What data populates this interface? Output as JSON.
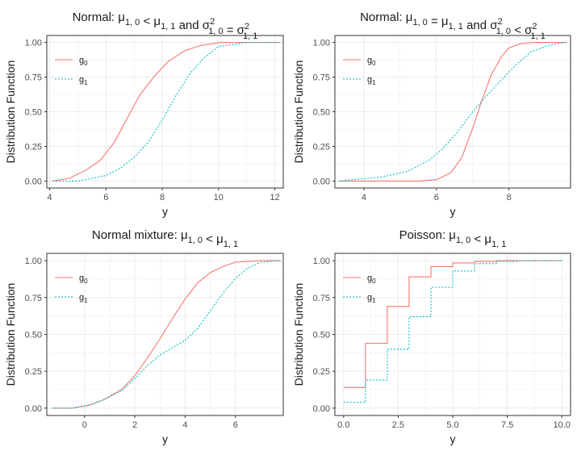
{
  "figure": {
    "ylabel": "Distribution Function",
    "xlabel": "y"
  },
  "colors": {
    "g0": "#F8766D",
    "g1": "#00BFC4",
    "grid": "#EBEBEB",
    "border": "#333333"
  },
  "chart_data": [
    {
      "type": "line",
      "title_main": "Normal: ",
      "title_math": "μ1,0 < μ1,1 and σ²1,0 = σ²1,1",
      "xlabel": "y",
      "ylabel": "Distribution Function",
      "xlim": [
        3.9,
        12.3
      ],
      "ylim": [
        0,
        1
      ],
      "xticks": [
        4,
        6,
        8,
        10,
        12
      ],
      "yticks": [
        0.0,
        0.25,
        0.5,
        0.75,
        1.0
      ],
      "ytick_labels": [
        "0.00",
        "0.25",
        "0.50",
        "0.75",
        "1.00"
      ],
      "legend": [
        {
          "name": "g",
          "sub": "0"
        },
        {
          "name": "g",
          "sub": "1"
        }
      ],
      "series": [
        {
          "name": "g0",
          "step": false,
          "x": [
            4.1,
            4.7,
            5.3,
            5.8,
            6.3,
            6.8,
            7.2,
            7.7,
            8.2,
            8.8,
            9.4,
            10.1,
            10.6,
            12.2
          ],
          "y": [
            0.0,
            0.02,
            0.08,
            0.15,
            0.28,
            0.47,
            0.62,
            0.75,
            0.86,
            0.94,
            0.98,
            1.0,
            1.0,
            1.0
          ]
        },
        {
          "name": "g1",
          "step": false,
          "x": [
            4.1,
            5.0,
            5.5,
            6.0,
            6.5,
            7.0,
            7.5,
            8.0,
            8.5,
            9.0,
            9.5,
            10.0,
            11.0,
            12.2
          ],
          "y": [
            0.0,
            0.0,
            0.02,
            0.04,
            0.09,
            0.17,
            0.28,
            0.44,
            0.62,
            0.78,
            0.89,
            0.97,
            1.0,
            1.0
          ]
        }
      ]
    },
    {
      "type": "line",
      "title_main": "Normal: ",
      "title_math": "μ1,0 = μ1,1 and σ²1,0 < σ²1,1",
      "xlabel": "y",
      "ylabel": "Distribution Function",
      "xlim": [
        3.2,
        9.7
      ],
      "ylim": [
        0,
        1
      ],
      "xticks": [
        4,
        6,
        8
      ],
      "yticks": [
        0.0,
        0.25,
        0.5,
        0.75,
        1.0
      ],
      "ytick_labels": [
        "0.00",
        "0.25",
        "0.50",
        "0.75",
        "1.00"
      ],
      "legend": [
        {
          "name": "g",
          "sub": "0"
        },
        {
          "name": "g",
          "sub": "1"
        }
      ],
      "series": [
        {
          "name": "g0",
          "step": false,
          "x": [
            3.3,
            5.5,
            6.0,
            6.4,
            6.7,
            7.0,
            7.2,
            7.5,
            7.8,
            8.0,
            8.3,
            8.7,
            9.0,
            9.6
          ],
          "y": [
            0.0,
            0.0,
            0.01,
            0.06,
            0.17,
            0.38,
            0.54,
            0.76,
            0.9,
            0.96,
            0.99,
            1.0,
            1.0,
            1.0
          ]
        },
        {
          "name": "g1",
          "step": false,
          "x": [
            3.3,
            4.5,
            5.2,
            5.8,
            6.2,
            6.6,
            7.0,
            7.4,
            7.8,
            8.2,
            8.6,
            9.0,
            9.3,
            9.6
          ],
          "y": [
            0.0,
            0.03,
            0.07,
            0.15,
            0.24,
            0.36,
            0.5,
            0.62,
            0.73,
            0.84,
            0.93,
            0.97,
            0.99,
            1.0
          ]
        }
      ]
    },
    {
      "type": "line",
      "title_main": "Normal mixture: ",
      "title_math": "μ1,0 < μ1,1",
      "xlabel": "y",
      "ylabel": "Distribution Function",
      "xlim": [
        -1.5,
        7.9
      ],
      "ylim": [
        0,
        1
      ],
      "xticks": [
        0,
        2,
        4,
        6
      ],
      "yticks": [
        0.0,
        0.25,
        0.5,
        0.75,
        1.0
      ],
      "ytick_labels": [
        "0.00",
        "0.25",
        "0.50",
        "0.75",
        "1.00"
      ],
      "legend": [
        {
          "name": "g",
          "sub": "0"
        },
        {
          "name": "g",
          "sub": "1"
        }
      ],
      "series": [
        {
          "name": "g0",
          "step": false,
          "x": [
            -1.3,
            -0.5,
            0.2,
            0.8,
            1.5,
            2.0,
            2.5,
            3.0,
            3.5,
            4.0,
            4.5,
            5.0,
            5.5,
            6.0,
            7.0,
            7.8
          ],
          "y": [
            0.0,
            0.0,
            0.02,
            0.06,
            0.13,
            0.22,
            0.34,
            0.47,
            0.61,
            0.74,
            0.85,
            0.92,
            0.96,
            0.99,
            1.0,
            1.0
          ]
        },
        {
          "name": "g1",
          "step": false,
          "x": [
            -1.3,
            -0.5,
            0.2,
            0.8,
            1.5,
            2.0,
            2.5,
            3.0,
            3.5,
            4.0,
            4.5,
            5.0,
            5.5,
            6.0,
            6.5,
            7.0,
            7.8
          ],
          "y": [
            0.0,
            0.0,
            0.02,
            0.06,
            0.12,
            0.2,
            0.29,
            0.36,
            0.41,
            0.46,
            0.54,
            0.66,
            0.78,
            0.88,
            0.95,
            0.99,
            1.0
          ]
        }
      ]
    },
    {
      "type": "line",
      "title_main": "Poisson: ",
      "title_math": "μ1,0 < μ1,1",
      "xlabel": "y",
      "ylabel": "Distribution Function",
      "xlim": [
        -0.4,
        10.4
      ],
      "ylim": [
        0,
        1
      ],
      "xticks": [
        0.0,
        2.5,
        5.0,
        7.5,
        10.0
      ],
      "xtick_labels": [
        "0.0",
        "2.5",
        "5.0",
        "7.5",
        "10.0"
      ],
      "yticks": [
        0.0,
        0.25,
        0.5,
        0.75,
        1.0
      ],
      "ytick_labels": [
        "0.00",
        "0.25",
        "0.50",
        "0.75",
        "1.00"
      ],
      "legend": [
        {
          "name": "g",
          "sub": "0"
        },
        {
          "name": "g",
          "sub": "1"
        }
      ],
      "series": [
        {
          "name": "g0",
          "step": true,
          "x": [
            0,
            1,
            2,
            3,
            4,
            5,
            6,
            7,
            8,
            10
          ],
          "y": [
            0.14,
            0.44,
            0.69,
            0.89,
            0.96,
            0.985,
            0.995,
            1.0,
            1.0,
            1.0
          ]
        },
        {
          "name": "g1",
          "step": true,
          "x": [
            0,
            1,
            2,
            3,
            4,
            5,
            6,
            7,
            8,
            10
          ],
          "y": [
            0.04,
            0.19,
            0.4,
            0.62,
            0.82,
            0.93,
            0.98,
            0.995,
            1.0,
            1.0
          ]
        }
      ]
    }
  ]
}
